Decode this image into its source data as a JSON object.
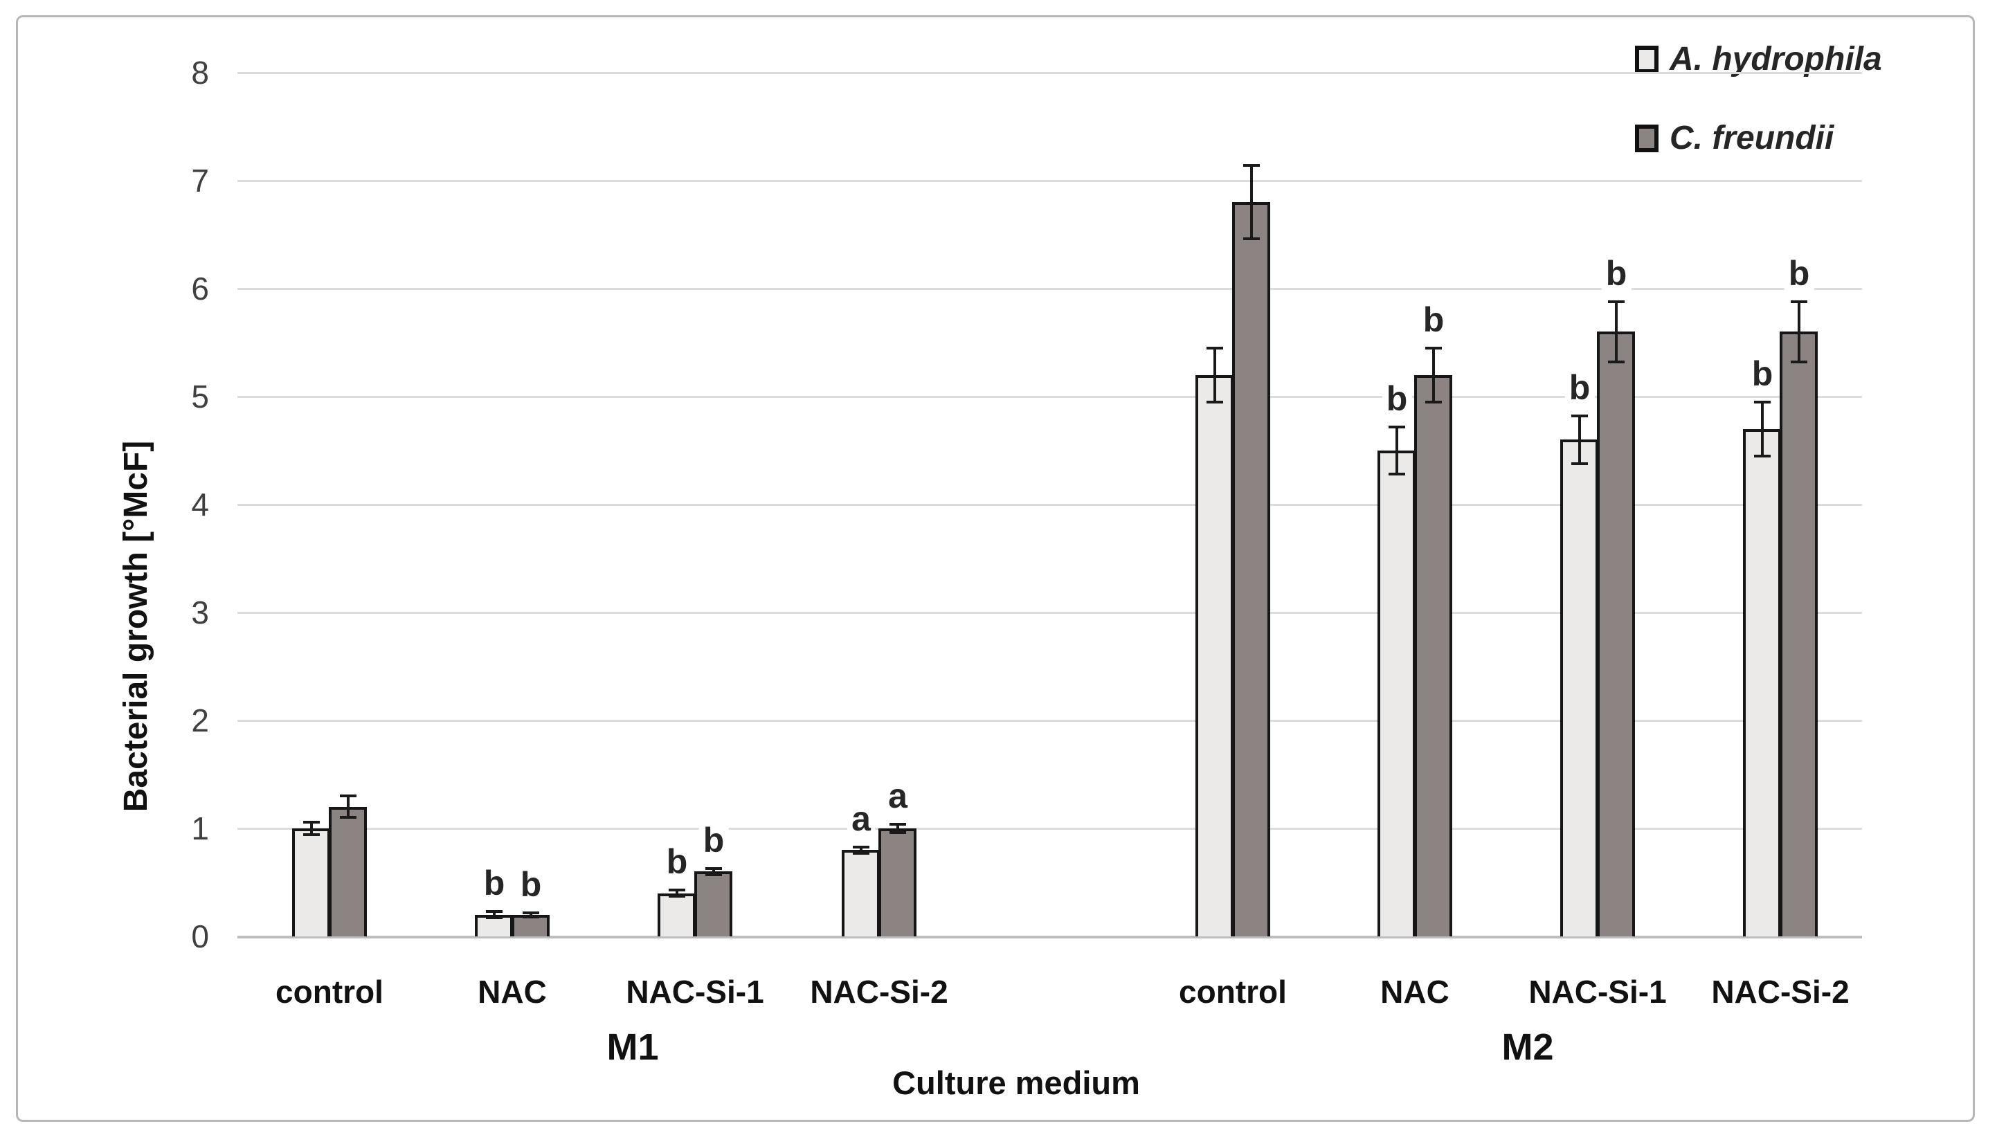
{
  "figure": {
    "xlabel": "Culture medium",
    "ylabel": "Bacterial growth [°McF]"
  },
  "legend": {
    "items": [
      {
        "label": "A. hydrophila",
        "swatch": "#ebeae8"
      },
      {
        "label": "C. freundii",
        "swatch": "#8b8482"
      }
    ]
  },
  "chart_data": {
    "type": "bar",
    "title": "",
    "xlabel": "Culture medium",
    "ylabel": "Bacterial growth [°McF]",
    "ylim": [
      0,
      8
    ],
    "yticks": [
      0,
      1,
      2,
      3,
      4,
      5,
      6,
      7,
      8
    ],
    "grid": true,
    "legend_position": "top-right",
    "series_colors": {
      "A. hydrophila": "#ebeae8",
      "C. freundii": "#8b8482"
    },
    "bar_border_color": "#161616",
    "error_bar_color": "#1a1a1a",
    "groups": [
      {
        "label": "M1",
        "categories": [
          "control",
          "NAC",
          "NAC-Si-1",
          "NAC-Si-2"
        ],
        "series": [
          {
            "name": "A. hydrophila",
            "values": [
              1.0,
              0.2,
              0.4,
              0.8
            ],
            "errors": [
              0.06,
              0.03,
              0.03,
              0.03
            ],
            "sig": [
              "",
              "b",
              "b",
              "a"
            ]
          },
          {
            "name": "C. freundii",
            "values": [
              1.2,
              0.2,
              0.6,
              1.0
            ],
            "errors": [
              0.1,
              0.02,
              0.03,
              0.04
            ],
            "sig": [
              "",
              "b",
              "b",
              "a"
            ]
          }
        ]
      },
      {
        "label": "M2",
        "categories": [
          "control",
          "NAC",
          "NAC-Si-1",
          "NAC-Si-2"
        ],
        "series": [
          {
            "name": "A. hydrophila",
            "values": [
              5.2,
              4.5,
              4.6,
              4.7
            ],
            "errors": [
              0.25,
              0.22,
              0.22,
              0.25
            ],
            "sig": [
              "",
              "b",
              "b",
              "b"
            ]
          },
          {
            "name": "C. freundii",
            "values": [
              6.8,
              5.2,
              5.6,
              5.6
            ],
            "errors": [
              0.34,
              0.25,
              0.28,
              0.28
            ],
            "sig": [
              "",
              "b",
              "b",
              "b"
            ]
          }
        ]
      }
    ]
  }
}
